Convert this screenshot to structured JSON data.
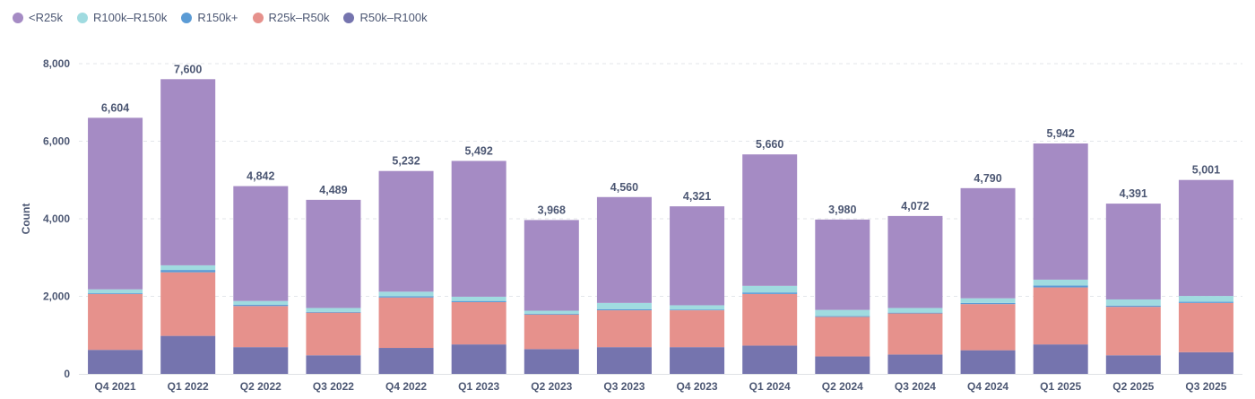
{
  "chart_data": {
    "type": "bar",
    "stacked": true,
    "ylabel": "Count",
    "ylim": [
      0,
      8000
    ],
    "yticks": [
      0,
      2000,
      4000,
      6000,
      8000
    ],
    "ytick_labels": [
      "0",
      "2,000",
      "4,000",
      "6,000",
      "8,000"
    ],
    "grid": true,
    "legend_position": "top-left",
    "legend": [
      {
        "name": "<R25k",
        "color": "#a58bc4"
      },
      {
        "name": "R100k–R150k",
        "color": "#a0dbe0"
      },
      {
        "name": "R150k+",
        "color": "#5b9bd5"
      },
      {
        "name": "R25k–R50k",
        "color": "#e6918c"
      },
      {
        "name": "R50k–R100k",
        "color": "#7574ae"
      }
    ],
    "categories": [
      "Q4 2021",
      "Q1 2022",
      "Q2 2022",
      "Q3 2022",
      "Q4 2022",
      "Q1 2023",
      "Q2 2023",
      "Q3 2023",
      "Q4 2023",
      "Q1 2024",
      "Q2 2024",
      "Q3 2024",
      "Q4 2024",
      "Q1 2025",
      "Q2 2025",
      "Q3 2025"
    ],
    "totals": [
      6604,
      7600,
      4842,
      4489,
      5232,
      5492,
      3968,
      4560,
      4321,
      5660,
      3980,
      4072,
      4790,
      5942,
      4391,
      5001
    ],
    "total_labels": [
      "6,604",
      "7,600",
      "4,842",
      "4,489",
      "5,232",
      "5,492",
      "3,968",
      "4,560",
      "4,321",
      "5,660",
      "3,980",
      "4,072",
      "4,790",
      "5,942",
      "4,391",
      "5,001"
    ],
    "series": [
      {
        "name": "R50k–R100k",
        "color": "#7574ae",
        "values": [
          620,
          980,
          690,
          480,
          670,
          760,
          640,
          690,
          690,
          730,
          450,
          500,
          610,
          760,
          480,
          560
        ]
      },
      {
        "name": "R25k–R50k",
        "color": "#e6918c",
        "values": [
          1440,
          1640,
          1060,
          1100,
          1300,
          1090,
          890,
          950,
          950,
          1330,
          1020,
          1060,
          1190,
          1470,
          1250,
          1270
        ]
      },
      {
        "name": "R150k+",
        "color": "#5b9bd5",
        "values": [
          20,
          60,
          30,
          20,
          30,
          30,
          20,
          30,
          20,
          40,
          20,
          20,
          30,
          50,
          30,
          30
        ]
      },
      {
        "name": "R100k–R150k",
        "color": "#a0dbe0",
        "values": [
          100,
          120,
          100,
          100,
          120,
          110,
          80,
          160,
          110,
          170,
          160,
          120,
          120,
          150,
          160,
          150
        ]
      },
      {
        "name": "<R25k",
        "color": "#a58bc4",
        "values": [
          4424,
          4800,
          2962,
          2789,
          3112,
          3502,
          2338,
          2730,
          2551,
          3390,
          2330,
          2372,
          2840,
          3512,
          2471,
          2991
        ]
      }
    ]
  }
}
